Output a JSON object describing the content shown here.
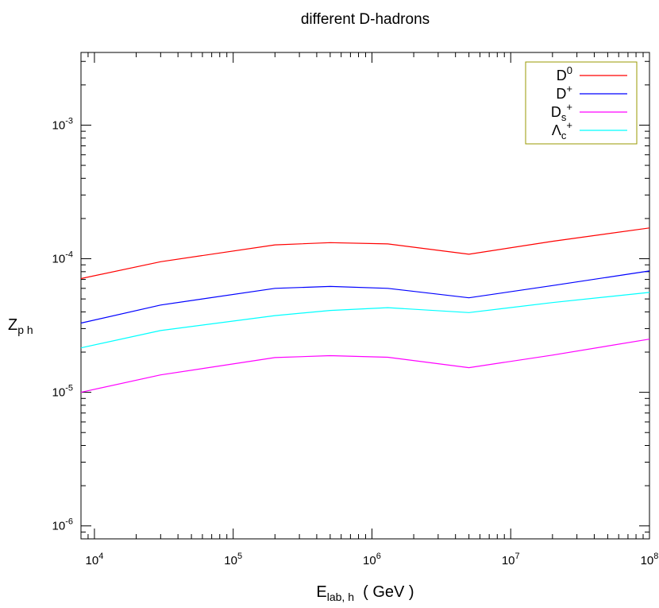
{
  "chart_data": {
    "type": "line",
    "title": "different D-hadrons",
    "xlabel": "E_lab, h ( GeV )",
    "xlabel_main": "E",
    "xlabel_sub": "lab, h",
    "xlabel_rest": "( GeV )",
    "ylabel": "Z_p h",
    "ylabel_main": "Z",
    "ylabel_sub": "p h",
    "xscale": "log",
    "yscale": "log",
    "xlim": [
      8000,
      100000000
    ],
    "ylim": [
      8e-07,
      0.0035
    ],
    "grid": false,
    "legend_position": "top-right",
    "x_ticks": [
      {
        "value": 10000,
        "base": "10",
        "exp": "4"
      },
      {
        "value": 100000,
        "base": "10",
        "exp": "5"
      },
      {
        "value": 1000000,
        "base": "10",
        "exp": "6"
      },
      {
        "value": 10000000,
        "base": "10",
        "exp": "7"
      },
      {
        "value": 100000000,
        "base": "10",
        "exp": "8"
      }
    ],
    "y_ticks": [
      {
        "value": 1e-06,
        "base": "10",
        "exp": "-6"
      },
      {
        "value": 1e-05,
        "base": "10",
        "exp": "-5"
      },
      {
        "value": 0.0001,
        "base": "10",
        "exp": "-4"
      },
      {
        "value": 0.001,
        "base": "10",
        "exp": "-3"
      }
    ],
    "x": [
      8000,
      30000,
      200000,
      500000,
      1300000,
      5000000,
      20000000,
      100000000
    ],
    "series": [
      {
        "name": "D0",
        "label_main": "D",
        "label_sup": "0",
        "label_sub": "",
        "color": "#ff0000",
        "values": [
          7.1e-05,
          9.5e-05,
          0.000127,
          0.000132,
          0.000129,
          0.000108,
          0.000135,
          0.00017
        ]
      },
      {
        "name": "D+",
        "label_main": "D",
        "label_sup": "+",
        "label_sub": "",
        "color": "#0000ff",
        "values": [
          3.3e-05,
          4.5e-05,
          6e-05,
          6.2e-05,
          6e-05,
          5.1e-05,
          6.3e-05,
          8.1e-05
        ]
      },
      {
        "name": "Ds+",
        "label_main": "D",
        "label_sup": "+",
        "label_sub": "s",
        "color": "#ff00ff",
        "values": [
          1e-05,
          1.35e-05,
          1.82e-05,
          1.88e-05,
          1.83e-05,
          1.53e-05,
          1.9e-05,
          2.5e-05
        ]
      },
      {
        "name": "Λc+",
        "label_main": "Λ",
        "label_sup": "+",
        "label_sub": "c",
        "color": "#00ffff",
        "values": [
          2.15e-05,
          2.9e-05,
          3.75e-05,
          4.1e-05,
          4.3e-05,
          3.95e-05,
          4.7e-05,
          5.6e-05
        ]
      }
    ]
  }
}
